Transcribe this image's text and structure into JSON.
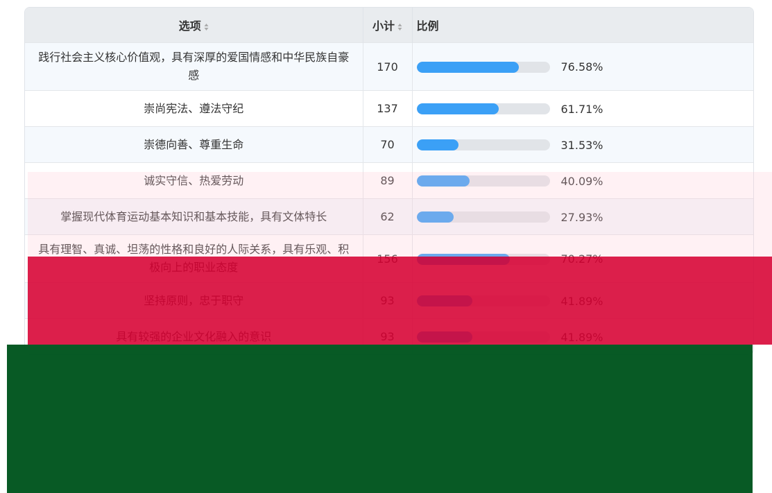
{
  "table": {
    "header": [
      "选项",
      "小计",
      "比例"
    ],
    "rows": [
      {
        "option": "践行社会主义核心价值观，具有深厚的爱国情感和中华民族自豪感",
        "count": 170,
        "percent": 76.58,
        "percent_label": "76.58%"
      },
      {
        "option": "崇尚宪法、遵法守纪",
        "count": 137,
        "percent": 61.71,
        "percent_label": "61.71%"
      },
      {
        "option": "崇德向善、尊重生命",
        "count": 70,
        "percent": 31.53,
        "percent_label": "31.53%"
      },
      {
        "option": "诚实守信、热爱劳动",
        "count": 89,
        "percent": 40.09,
        "percent_label": "40.09%"
      },
      {
        "option": "掌握现代体育运动基本知识和基本技能，具有文体特长",
        "count": 62,
        "percent": 27.93,
        "percent_label": "27.93%"
      },
      {
        "option": "具有理智、真诚、坦荡的性格和良好的人际关系，具有乐观、积极向上的职业态度",
        "count": 156,
        "percent": 70.27,
        "percent_label": "70.27%"
      },
      {
        "option": "坚持原则，忠于职守",
        "count": 93,
        "percent": 41.89,
        "percent_label": "41.89%"
      },
      {
        "option": "具有较强的企业文化融入的意识",
        "count": 93,
        "percent": 41.89,
        "percent_label": "41.89%"
      }
    ]
  }
}
